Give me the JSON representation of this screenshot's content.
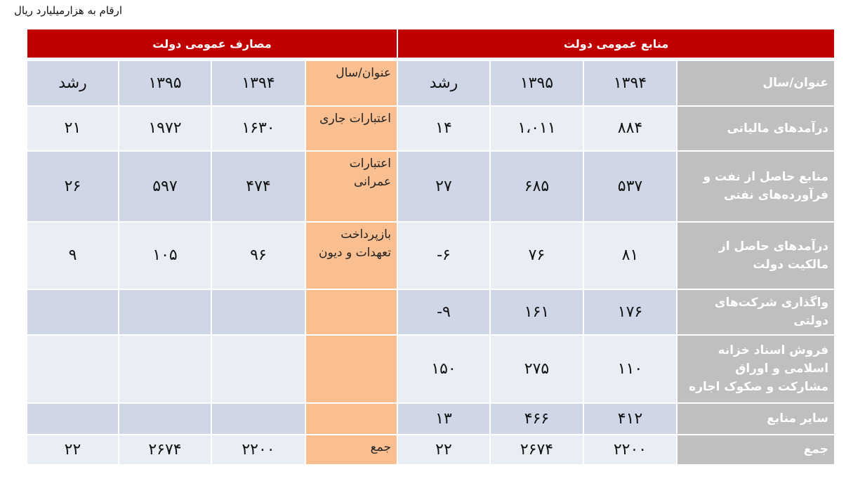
{
  "note": "ارقام به هزارمیلیارد ریال",
  "expenses": {
    "title": "مصارف عمومی دولت"
  },
  "resources": {
    "title": "منابع عمومی دولت"
  },
  "colors": {
    "header": "#c00000",
    "label_gray": "#bfbfbf",
    "label_orange": "#f9bf91",
    "row_dark": "#cfd7e7",
    "row_light": "#e9edf4"
  },
  "rows": [
    {
      "exp_label": "عنوان/سال",
      "exp_1394": "۱۳۹۴",
      "exp_1395": "۱۳۹۵",
      "exp_growth": "رشد",
      "res_label": "عنوان/سال",
      "res_1394": "۱۳۹۴",
      "res_1395": "۱۳۹۵",
      "res_growth": "رشد"
    },
    {
      "exp_label": "اعتبارات جاری",
      "exp_1394": "۱۶۳۰",
      "exp_1395": "۱۹۷۲",
      "exp_growth": "۲۱",
      "res_label": "درآمدهای مالیاتی",
      "res_1394": "۸۸۴",
      "res_1395": "۱،۰۱۱",
      "res_growth": "۱۴"
    },
    {
      "exp_label": "اعتبارات عمرانی",
      "exp_1394": "۴۷۴",
      "exp_1395": "۵۹۷",
      "exp_growth": "۲۶",
      "res_label": "منابع حاصل از نفت و فرآورده‌های نفتی",
      "res_1394": "۵۳۷",
      "res_1395": "۶۸۵",
      "res_growth": "۲۷"
    },
    {
      "exp_label": "بازپرداخت تعهدات و دیون",
      "exp_1394": "۹۶",
      "exp_1395": "۱۰۵",
      "exp_growth": "۹",
      "res_label": "درآمدهای حاصل از مالکیت دولت",
      "res_1394": "۸۱",
      "res_1395": "۷۶",
      "res_growth": "-۶"
    },
    {
      "exp_label": "",
      "exp_1394": "",
      "exp_1395": "",
      "exp_growth": "",
      "res_label": "واگذاری شرکت‌های دولتی",
      "res_1394": "۱۷۶",
      "res_1395": "۱۶۱",
      "res_growth": "-۹"
    },
    {
      "exp_label": "",
      "exp_1394": "",
      "exp_1395": "",
      "exp_growth": "",
      "res_label": "فروش اسناد خزانه اسلامی و اوراق مشارکت و صکوک اجاره",
      "res_1394": "۱۱۰",
      "res_1395": "۲۷۵",
      "res_growth": "۱۵۰"
    },
    {
      "exp_label": "",
      "exp_1394": "",
      "exp_1395": "",
      "exp_growth": "",
      "res_label": "سایر منابع",
      "res_1394": "۴۱۲",
      "res_1395": "۴۶۶",
      "res_growth": "۱۳"
    },
    {
      "exp_label": "جمع",
      "exp_1394": "۲۲۰۰",
      "exp_1395": "۲۶۷۴",
      "exp_growth": "۲۲",
      "res_label": "جمع",
      "res_1394": "۲۲۰۰",
      "res_1395": "۲۶۷۴",
      "res_growth": "۲۲"
    }
  ]
}
